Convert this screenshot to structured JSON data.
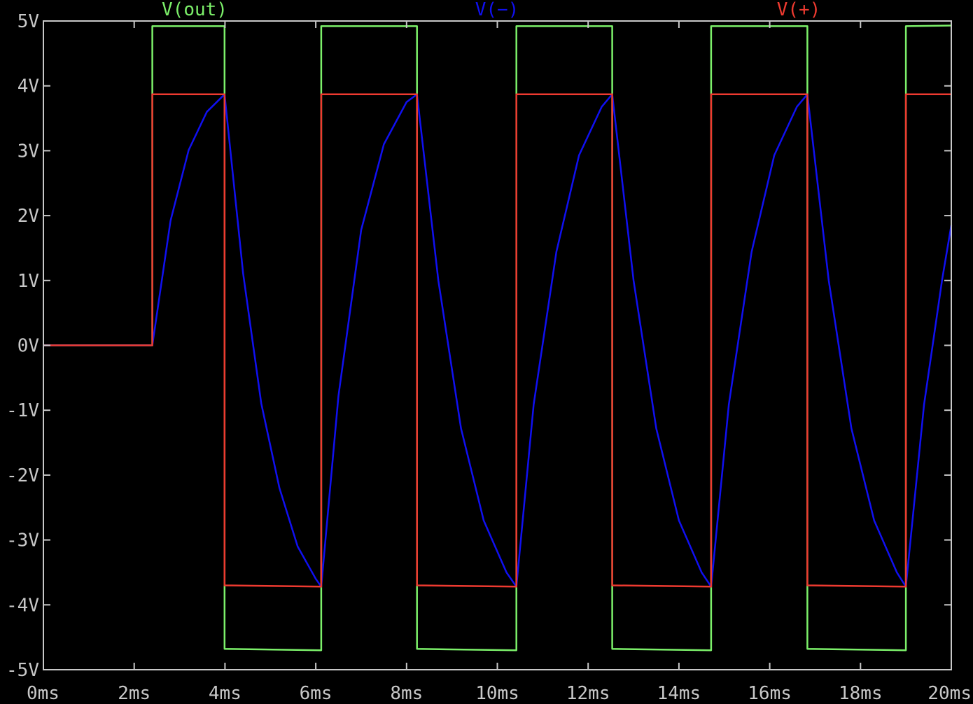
{
  "chart_data": {
    "type": "line",
    "background": "#000000",
    "axis_color": "#c8c8c8",
    "grid": false,
    "legend_placement": "top",
    "xlim": [
      0,
      20
    ],
    "ylim": [
      -5,
      5
    ],
    "x_ticks": [
      0,
      2,
      4,
      6,
      8,
      10,
      12,
      14,
      16,
      18,
      20
    ],
    "x_tick_labels": [
      "0ms",
      "2ms",
      "4ms",
      "6ms",
      "8ms",
      "10ms",
      "12ms",
      "14ms",
      "16ms",
      "18ms",
      "20ms"
    ],
    "y_ticks": [
      5,
      4,
      3,
      2,
      1,
      0,
      -1,
      -2,
      -3,
      -4,
      -5
    ],
    "y_tick_labels": [
      "5V",
      "4V",
      "3V",
      "2V",
      "1V",
      "0V",
      "-1V",
      "-2V",
      "-3V",
      "-4V",
      "-5V"
    ],
    "series": [
      {
        "name": "V(out)",
        "color": "#7cf06a",
        "x": [
          0,
          2.4,
          2.4,
          3.99,
          3.99,
          6.12,
          6.12,
          8.23,
          8.23,
          10.42,
          10.42,
          12.53,
          12.53,
          14.71,
          14.71,
          16.83,
          16.83,
          19.0,
          19.0,
          20.0
        ],
        "y": [
          0,
          0,
          4.92,
          4.92,
          -4.68,
          -4.7,
          4.92,
          4.92,
          -4.68,
          -4.7,
          4.92,
          4.92,
          -4.68,
          -4.7,
          4.92,
          4.92,
          -4.68,
          -4.7,
          4.92,
          4.93
        ]
      },
      {
        "name": "V(−)",
        "color": "#1010f0",
        "x": [
          0,
          2.4,
          2.8,
          3.2,
          3.6,
          3.99,
          4.4,
          4.8,
          5.2,
          5.6,
          6.0,
          6.12,
          6.5,
          7.0,
          7.5,
          8.0,
          8.23,
          8.7,
          9.2,
          9.7,
          10.2,
          10.42,
          10.8,
          11.3,
          11.8,
          12.3,
          12.53,
          13.0,
          13.5,
          14.0,
          14.5,
          14.71,
          15.1,
          15.6,
          16.1,
          16.6,
          16.83,
          17.3,
          17.8,
          18.3,
          18.8,
          19.0,
          19.4,
          19.8,
          20.0
        ],
        "y": [
          0,
          0,
          1.92,
          3.01,
          3.6,
          3.87,
          1.11,
          -0.9,
          -2.2,
          -3.1,
          -3.6,
          -3.72,
          -0.78,
          1.78,
          3.1,
          3.75,
          3.87,
          1.0,
          -1.28,
          -2.7,
          -3.5,
          -3.72,
          -0.91,
          1.44,
          2.93,
          3.68,
          3.87,
          1.0,
          -1.28,
          -2.7,
          -3.5,
          -3.72,
          -0.91,
          1.44,
          2.93,
          3.68,
          3.87,
          1.0,
          -1.28,
          -2.7,
          -3.5,
          -3.72,
          -0.91,
          1.02,
          1.85
        ]
      },
      {
        "name": "V(+)",
        "color": "#ee3a30",
        "x": [
          0,
          2.4,
          2.4,
          3.99,
          3.99,
          6.12,
          6.12,
          8.23,
          8.23,
          10.42,
          10.42,
          12.53,
          12.53,
          14.71,
          14.71,
          16.83,
          16.83,
          19.0,
          19.0,
          20.0
        ],
        "y": [
          0,
          0,
          3.87,
          3.87,
          -3.7,
          -3.72,
          3.87,
          3.87,
          -3.7,
          -3.72,
          3.87,
          3.87,
          -3.7,
          -3.72,
          3.87,
          3.87,
          -3.7,
          -3.72,
          3.87,
          3.87
        ]
      }
    ]
  }
}
